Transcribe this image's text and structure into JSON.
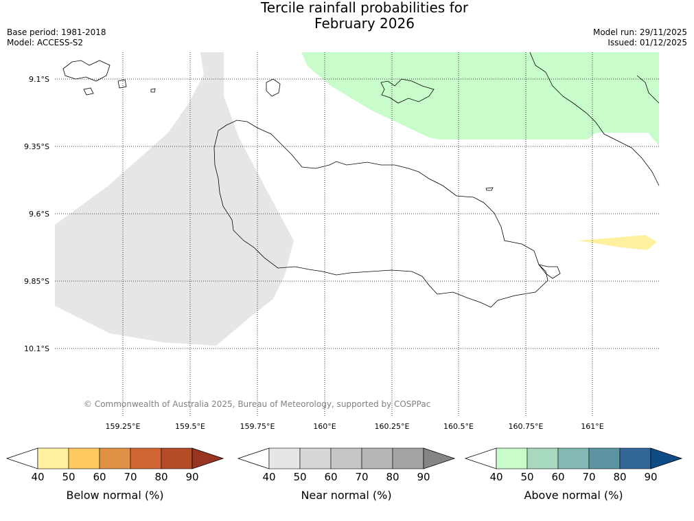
{
  "header": {
    "title_line1": "Tercile rainfall probabilities for",
    "title_line2": "February 2026",
    "base_period": "Base period: 1981-2018",
    "model": "Model: ACCESS-S2",
    "model_run": "Model run: 29/11/2025",
    "issued": "Issued: 01/12/2025"
  },
  "map": {
    "lat_labels": [
      "9.1°S",
      "9.35°S",
      "9.6°S",
      "9.85°S",
      "10.1°S"
    ],
    "lon_labels": [
      "159.25°E",
      "159.5°E",
      "159.75°E",
      "160°E",
      "160.25°E",
      "160.5°E",
      "160.75°E",
      "161°E"
    ],
    "copyright": "© Commonwealth of Australia 2025, Bureau of Meteorology, supported by COSPPac",
    "gridlines": true
  },
  "legend": {
    "ticks": [
      "40",
      "50",
      "60",
      "70",
      "80",
      "90"
    ],
    "bars": [
      {
        "label": "Below normal (%)",
        "colors": [
          "#ffffff",
          "#fff0a0",
          "#ffc961",
          "#e19146",
          "#d16533",
          "#b34d28",
          "#973520"
        ]
      },
      {
        "label": "Near normal (%)",
        "colors": [
          "#ffffff",
          "#e6e6e6",
          "#d6d6d6",
          "#c6c6c6",
          "#b5b5b5",
          "#a3a3a3",
          "#858585"
        ]
      },
      {
        "label": "Above normal (%)",
        "colors": [
          "#ffffff",
          "#c9fccb",
          "#a6d9bd",
          "#83b8b5",
          "#5c94a2",
          "#336699",
          "#0e4b87"
        ]
      }
    ]
  }
}
